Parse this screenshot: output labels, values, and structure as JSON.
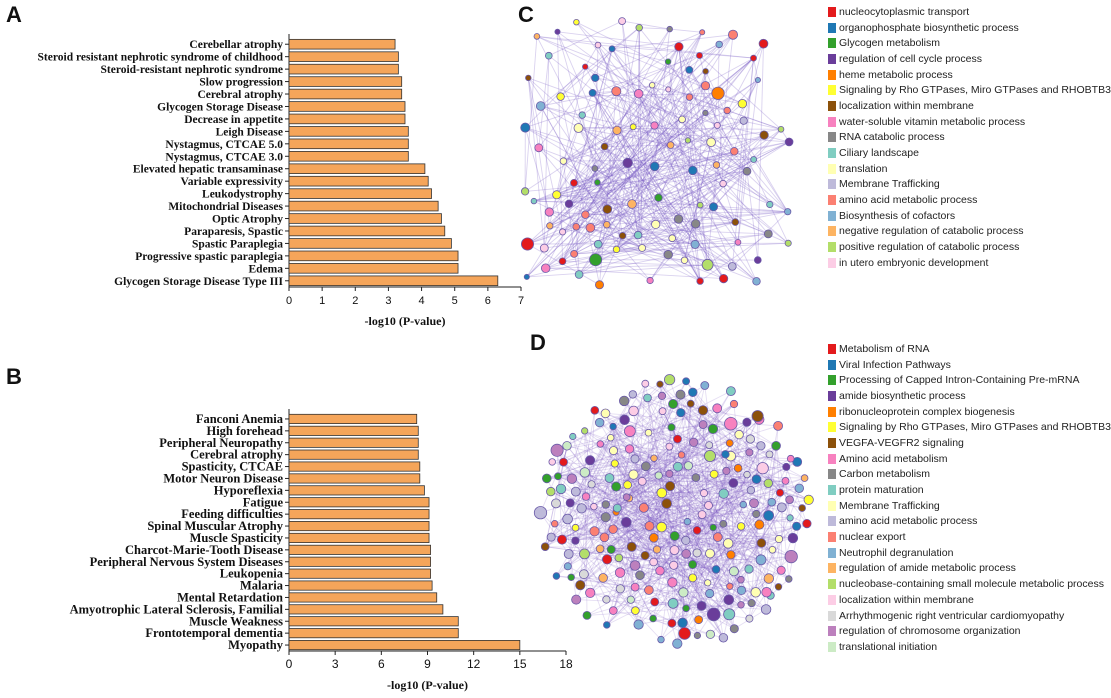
{
  "panels": {
    "A": "A",
    "B": "B",
    "C": "C",
    "D": "D"
  },
  "chart_data": [
    {
      "type": "bar",
      "orientation": "horizontal",
      "panel": "A",
      "categories": [
        "Cerebellar atrophy",
        "Steroid resistant nephrotic syndrome of childhood",
        "Steroid-resistant nephrotic syndrome",
        "Slow progression",
        "Cerebral atrophy",
        "Glycogen Storage Disease",
        "Decrease in appetite",
        "Leigh Disease",
        "Nystagmus, CTCAE 5.0",
        "Nystagmus, CTCAE 3.0",
        "Elevated hepatic transaminase",
        "Variable expressivity",
        "Leukodystrophy",
        "Mitochondrial Diseases",
        "Optic Atrophy",
        "Paraparesis, Spastic",
        "Spastic Paraplegia",
        "Progressive spastic paraplegia",
        "Edema",
        "Glycogen Storage Disease Type III"
      ],
      "values": [
        3.2,
        3.3,
        3.3,
        3.4,
        3.4,
        3.5,
        3.5,
        3.6,
        3.6,
        3.6,
        4.1,
        4.2,
        4.3,
        4.5,
        4.6,
        4.7,
        4.9,
        5.1,
        5.1,
        6.3
      ],
      "xlabel": "-log10 (P-value)",
      "xticks": [
        "0",
        "1",
        "2",
        "3",
        "4",
        "5",
        "6",
        "7"
      ],
      "xlim": [
        0,
        7
      ]
    },
    {
      "type": "bar",
      "orientation": "horizontal",
      "panel": "B",
      "categories": [
        "Fanconi Anemia",
        "High forehead",
        "Peripheral Neuropathy",
        "Cerebral atrophy",
        "Spasticity, CTCAE",
        "Motor Neuron Disease",
        "Hyporeflexia",
        "Fatigue",
        "Feeding difficulties",
        "Spinal Muscular Atrophy",
        "Muscle Spasticity",
        "Charcot-Marie-Tooth Disease",
        "Peripheral Nervous System Diseases",
        "Leukopenia",
        "Malaria",
        "Mental Retardation",
        "Amyotrophic Lateral Sclerosis, Familial",
        "Muscle Weakness",
        "Frontotemporal dementia",
        "Myopathy"
      ],
      "values": [
        8.3,
        8.4,
        8.4,
        8.4,
        8.5,
        8.5,
        8.8,
        9.1,
        9.1,
        9.1,
        9.1,
        9.2,
        9.2,
        9.2,
        9.3,
        9.6,
        10.0,
        11.0,
        11.0,
        15.0
      ],
      "xlabel": "-log10 (P-value)",
      "xticks": [
        "0",
        "3",
        "6",
        "9",
        "12",
        "15",
        "18"
      ],
      "xlim": [
        0,
        18
      ]
    }
  ],
  "legendC": [
    {
      "label": "nucleocytoplasmic transport",
      "color": "#e31a1c"
    },
    {
      "label": "organophosphate biosynthetic process",
      "color": "#1f78b4"
    },
    {
      "label": "Glycogen metabolism",
      "color": "#33a02c"
    },
    {
      "label": "regulation of cell cycle process",
      "color": "#6a3d9a"
    },
    {
      "label": "heme metabolic process",
      "color": "#ff7f00"
    },
    {
      "label": "Signaling by Rho GTPases, Miro GTPases and RHOBTB3",
      "color": "#ffff33"
    },
    {
      "label": "localization within membrane",
      "color": "#8c510a"
    },
    {
      "label": "water-soluble vitamin metabolic process",
      "color": "#f781bf"
    },
    {
      "label": "RNA catabolic process",
      "color": "#878787"
    },
    {
      "label": "Ciliary landscape",
      "color": "#80cdc1"
    },
    {
      "label": "translation",
      "color": "#ffffb3"
    },
    {
      "label": "Membrane Trafficking",
      "color": "#bebada"
    },
    {
      "label": "amino acid metabolic process",
      "color": "#fb8072"
    },
    {
      "label": "Biosynthesis of cofactors",
      "color": "#80b1d3"
    },
    {
      "label": "negative regulation of catabolic process",
      "color": "#fdb462"
    },
    {
      "label": "positive regulation of catabolic process",
      "color": "#b3de69"
    },
    {
      "label": "in utero embryonic development",
      "color": "#fccde5"
    }
  ],
  "legendD": [
    {
      "label": "Metabolism of RNA",
      "color": "#e31a1c"
    },
    {
      "label": "Viral Infection Pathways",
      "color": "#1f78b4"
    },
    {
      "label": "Processing of Capped Intron-Containing Pre-mRNA",
      "color": "#33a02c"
    },
    {
      "label": "amide biosynthetic process",
      "color": "#6a3d9a"
    },
    {
      "label": "ribonucleoprotein complex biogenesis",
      "color": "#ff7f00"
    },
    {
      "label": "Signaling by Rho GTPases, Miro GTPases and RHOBTB3",
      "color": "#ffff33"
    },
    {
      "label": "VEGFA-VEGFR2 signaling",
      "color": "#8c510a"
    },
    {
      "label": "Amino acid metabolism",
      "color": "#f781bf"
    },
    {
      "label": "Carbon metabolism",
      "color": "#878787"
    },
    {
      "label": "protein maturation",
      "color": "#80cdc1"
    },
    {
      "label": "Membrane Trafficking",
      "color": "#ffffb3"
    },
    {
      "label": "amino acid metabolic process",
      "color": "#bebada"
    },
    {
      "label": "nuclear export",
      "color": "#fb8072"
    },
    {
      "label": "Neutrophil degranulation",
      "color": "#80b1d3"
    },
    {
      "label": "regulation of amide metabolic process",
      "color": "#fdb462"
    },
    {
      "label": "nucleobase-containing small molecule metabolic process",
      "color": "#b3de69"
    },
    {
      "label": "localization within membrane",
      "color": "#fccde5"
    },
    {
      "label": "Arrhythmogenic right ventricular cardiomyopathy",
      "color": "#d9d9d9"
    },
    {
      "label": "regulation of chromosome organization",
      "color": "#bc80bd"
    },
    {
      "label": "translational initiation",
      "color": "#ccebc5"
    }
  ]
}
